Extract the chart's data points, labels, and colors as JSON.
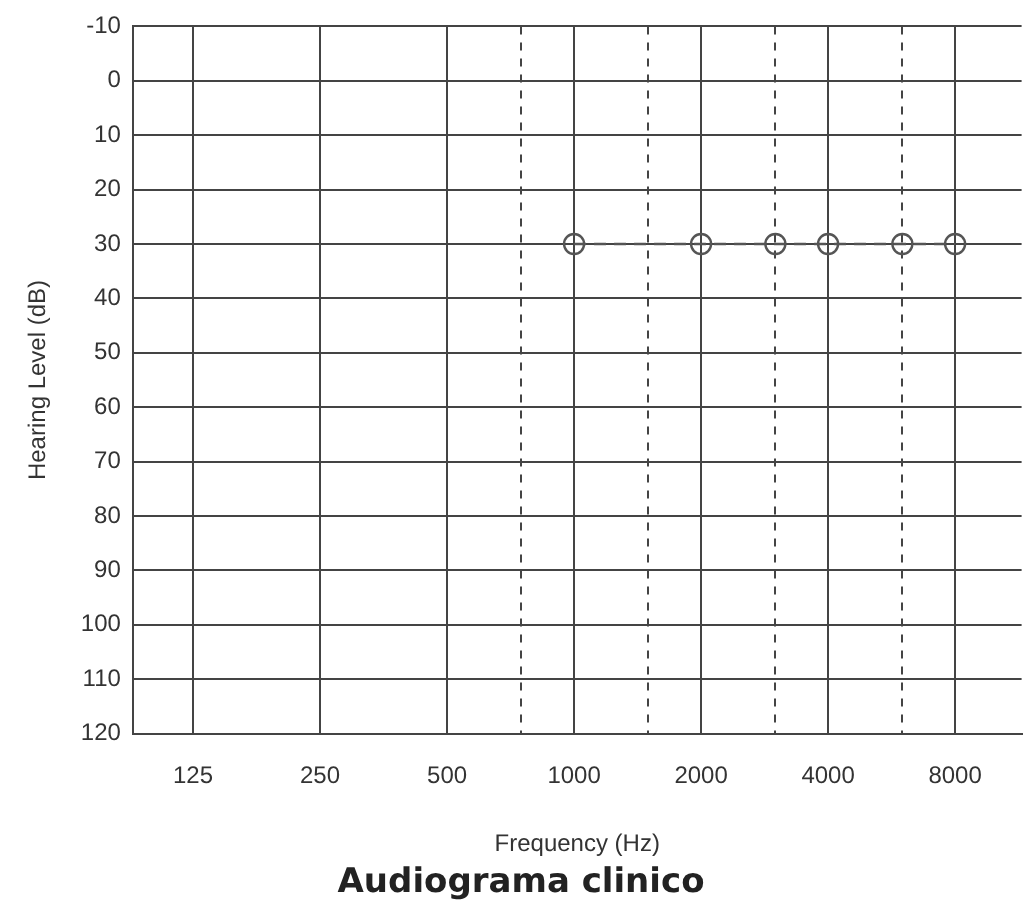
{
  "chart_data": {
    "type": "line",
    "title": "Audiograma clinico",
    "xlabel": "Frequency (Hz)",
    "ylabel": "Hearing Level (dB)",
    "x": [
      1000,
      2000,
      3000,
      4000,
      6000,
      8000
    ],
    "series": [
      {
        "color": "#555555",
        "values": [
          30,
          30,
          30,
          30,
          30,
          30
        ]
      }
    ],
    "log": "x",
    "xlim": [
      90,
      11500
    ],
    "xticks": [
      125,
      250,
      500,
      {
        "value": 750,
        "label": null
      },
      1000,
      {
        "value": 1500,
        "label": null
      },
      2000,
      {
        "value": 3000,
        "label": null
      },
      4000,
      {
        "value": 6000,
        "label": null
      },
      8000
    ],
    "ylim": [
      120,
      -10
    ],
    "yticks": [
      -10,
      0,
      10,
      20,
      30,
      40,
      50,
      60,
      70,
      80,
      90,
      100,
      110,
      120
    ],
    "grid": true,
    "marker": "circle",
    "line_style": "dashed",
    "legend": false
  }
}
